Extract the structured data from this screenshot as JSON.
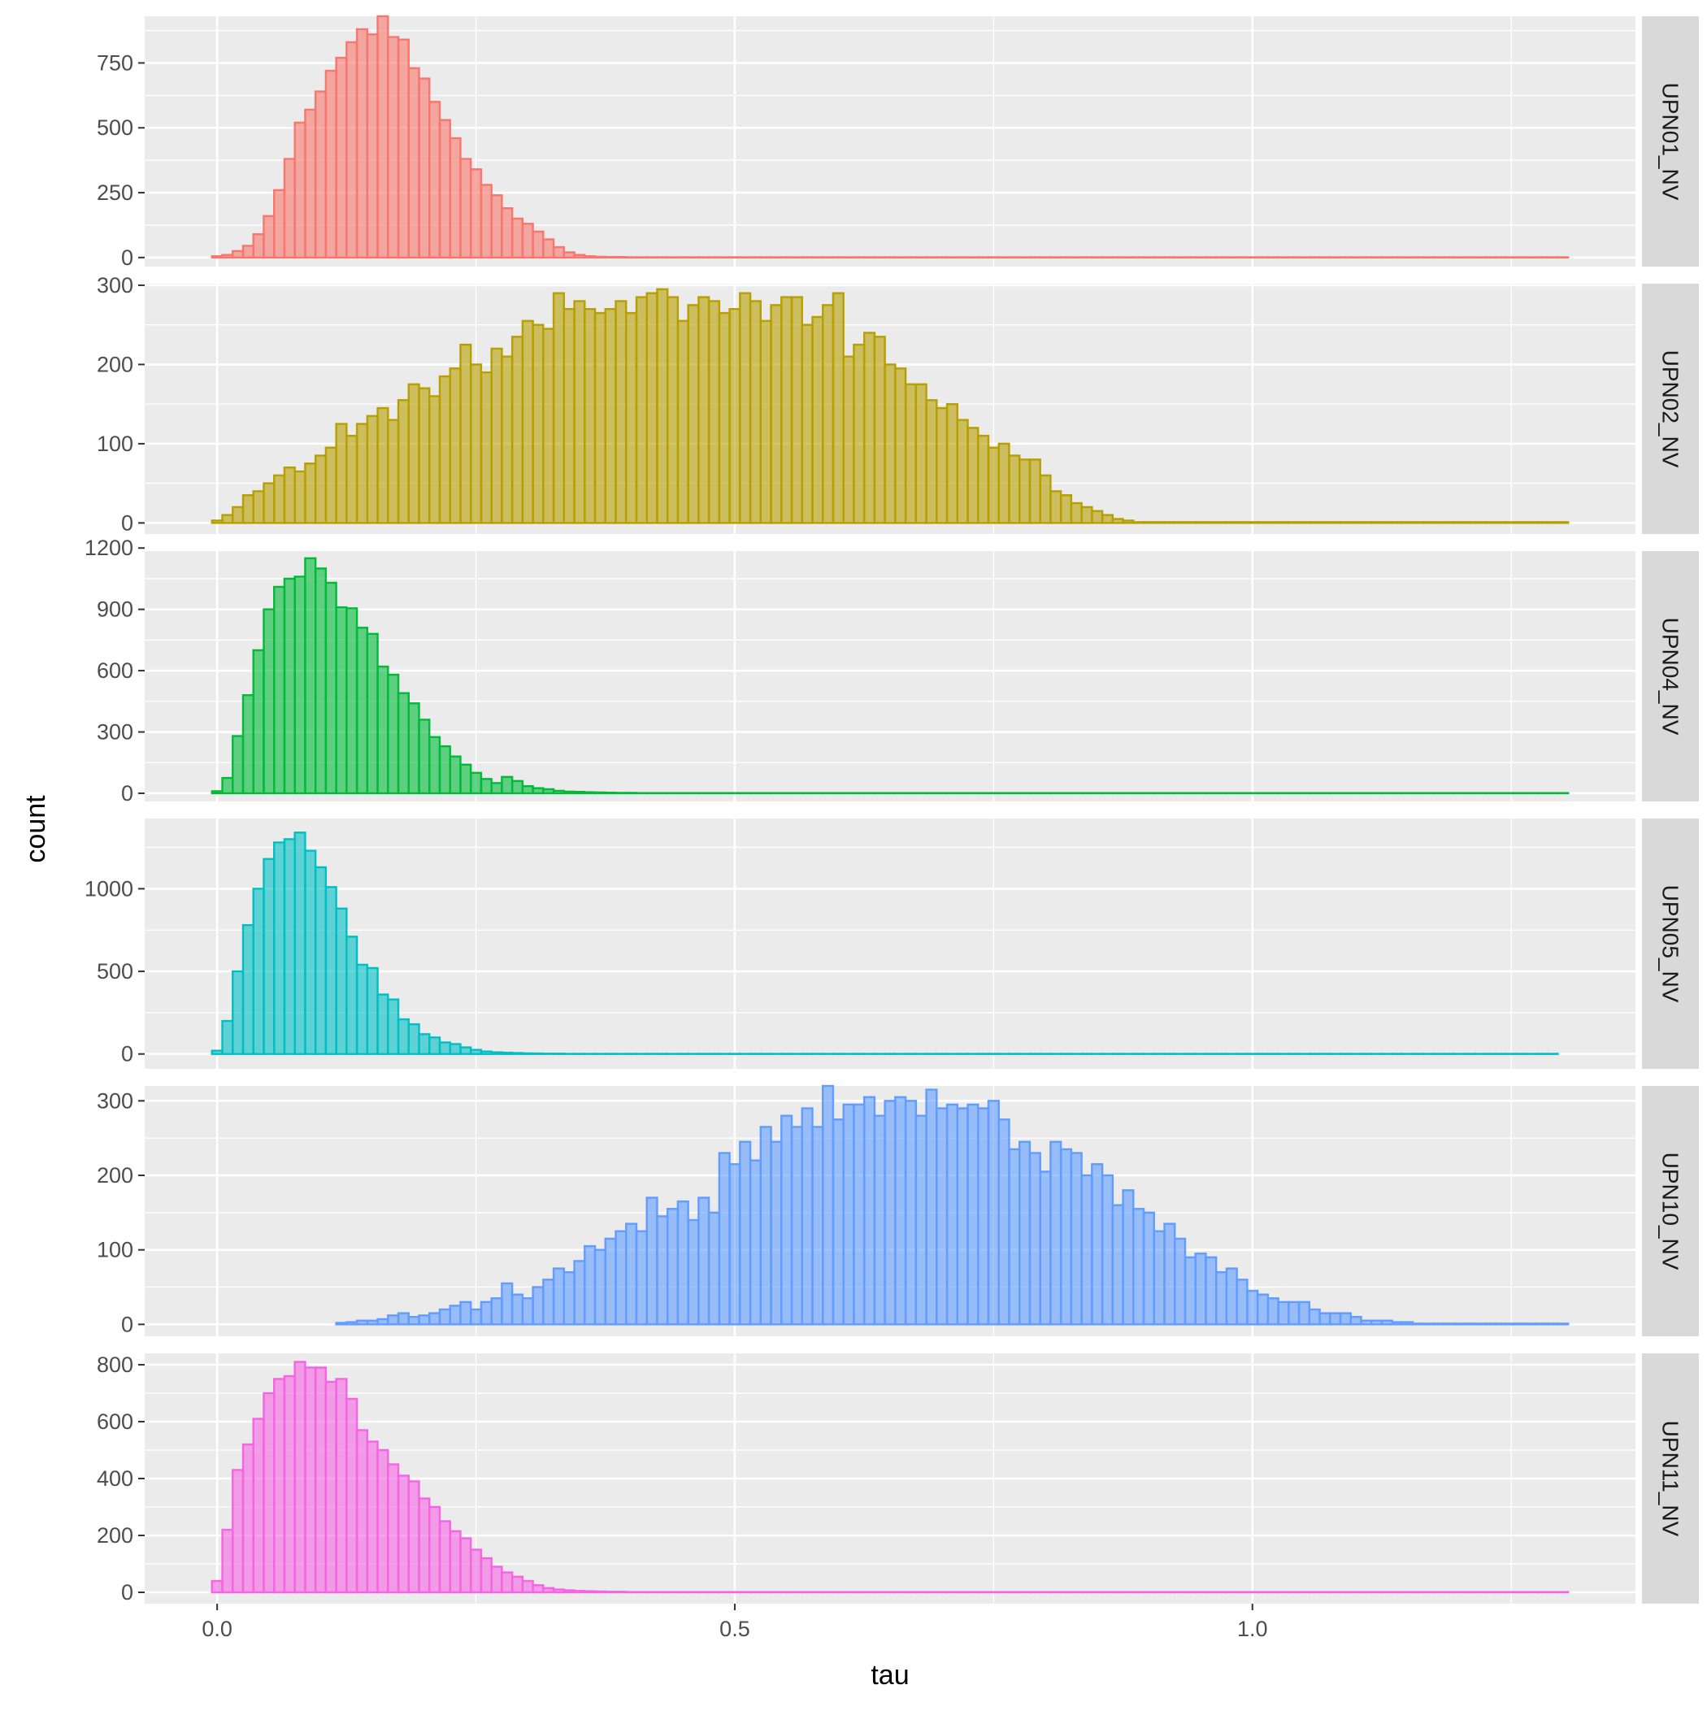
{
  "chart_data": {
    "type": "bar",
    "subtype": "faceted-histogram",
    "xlabel": "tau",
    "ylabel": "count",
    "xlim": [
      -0.07,
      1.37
    ],
    "x_ticks": [
      0.0,
      0.5,
      1.0
    ],
    "x_tick_labels": [
      "0.0",
      "0.5",
      "1.0"
    ],
    "bin_start": -0.005,
    "bin_width": 0.01,
    "grid": true,
    "legend": "none",
    "panel_background": "#ebebeb",
    "strip_background": "#d9d9d9",
    "facets": [
      {
        "label": "UPN01_NV",
        "color": "#F8766D",
        "ylim": [
          -35,
          930
        ],
        "y_ticks": [
          0,
          250,
          500,
          750
        ],
        "y_tick_labels": [
          "0",
          "250",
          "500",
          "750"
        ],
        "values": [
          5,
          10,
          25,
          45,
          90,
          160,
          260,
          380,
          520,
          570,
          640,
          720,
          770,
          830,
          880,
          860,
          930,
          850,
          840,
          730,
          690,
          600,
          530,
          460,
          380,
          340,
          280,
          240,
          190,
          150,
          130,
          100,
          70,
          40,
          20,
          10,
          5,
          3,
          2,
          2,
          1,
          1,
          1,
          1,
          1,
          1,
          1,
          1,
          1,
          1,
          1,
          1,
          1,
          1,
          1,
          1,
          1,
          1,
          1,
          1,
          1,
          1,
          1,
          1,
          1,
          1,
          1,
          1,
          1,
          1,
          1,
          1,
          1,
          1,
          1,
          1,
          1,
          1,
          1,
          1,
          1,
          1,
          1,
          1,
          1,
          1,
          1,
          1,
          1,
          1,
          1,
          1,
          1,
          1,
          1,
          1,
          1,
          1,
          1,
          1,
          1,
          1,
          1,
          1,
          1,
          1,
          1,
          1,
          1,
          1,
          1,
          1,
          1,
          1,
          1,
          1,
          1,
          1,
          1,
          1,
          1,
          1,
          1,
          1,
          1,
          1,
          1,
          1,
          1,
          1,
          1
        ]
      },
      {
        "label": "UPN02_NV",
        "color": "#B79F00",
        "ylim": [
          -14,
          302
        ],
        "y_ticks": [
          0,
          100,
          200,
          300
        ],
        "y_tick_labels": [
          "0",
          "100",
          "200",
          "300"
        ],
        "values": [
          3,
          10,
          20,
          35,
          40,
          50,
          60,
          70,
          65,
          75,
          85,
          95,
          125,
          110,
          125,
          135,
          145,
          130,
          155,
          175,
          170,
          160,
          185,
          195,
          225,
          200,
          190,
          220,
          210,
          235,
          255,
          250,
          245,
          290,
          270,
          280,
          270,
          265,
          270,
          280,
          265,
          285,
          290,
          295,
          285,
          255,
          275,
          285,
          280,
          265,
          270,
          290,
          280,
          255,
          275,
          285,
          285,
          250,
          260,
          275,
          290,
          210,
          225,
          240,
          235,
          200,
          195,
          175,
          175,
          155,
          145,
          150,
          130,
          120,
          110,
          95,
          100,
          85,
          80,
          80,
          60,
          40,
          35,
          25,
          20,
          15,
          10,
          5,
          3,
          1,
          1,
          1,
          1,
          1,
          1,
          1,
          1,
          1,
          1,
          1,
          1,
          1,
          1,
          1,
          1,
          1,
          1,
          1,
          1,
          1,
          1,
          1,
          1,
          1,
          1,
          1,
          1,
          1,
          1,
          1,
          1,
          1,
          1,
          1,
          1,
          1,
          1,
          1,
          1,
          1,
          1
        ]
      },
      {
        "label": "UPN04_NV",
        "color": "#00BA38",
        "ylim": [
          -40,
          1185
        ],
        "y_ticks": [
          0,
          300,
          600,
          900,
          1200
        ],
        "y_tick_labels": [
          "0",
          "300",
          "600",
          "900",
          "1200"
        ],
        "values": [
          10,
          75,
          280,
          480,
          700,
          900,
          1010,
          1050,
          1060,
          1150,
          1100,
          1030,
          910,
          905,
          810,
          780,
          620,
          580,
          490,
          440,
          360,
          275,
          230,
          180,
          140,
          100,
          70,
          50,
          80,
          60,
          35,
          25,
          20,
          12,
          8,
          7,
          5,
          4,
          3,
          2,
          2,
          1,
          1,
          1,
          1,
          1,
          1,
          1,
          1,
          1,
          1,
          1,
          1,
          1,
          1,
          1,
          1,
          1,
          1,
          1,
          1,
          1,
          1,
          1,
          1,
          1,
          1,
          1,
          1,
          1,
          1,
          1,
          1,
          1,
          1,
          1,
          1,
          1,
          1,
          1,
          1,
          1,
          1,
          1,
          1,
          1,
          1,
          1,
          1,
          1,
          1,
          1,
          1,
          1,
          1,
          1,
          1,
          1,
          1,
          1,
          1,
          1,
          1,
          1,
          1,
          1,
          1,
          1,
          1,
          1,
          1,
          1,
          1,
          1,
          1,
          1,
          1,
          1,
          1,
          1,
          1,
          1,
          1,
          1,
          1,
          1,
          1,
          1,
          1,
          1,
          1
        ]
      },
      {
        "label": "UPN05_NV",
        "color": "#00BFC4",
        "ylim": [
          -90,
          1425
        ],
        "y_ticks": [
          0,
          500,
          1000
        ],
        "y_tick_labels": [
          "0",
          "500",
          "1000"
        ],
        "values": [
          20,
          200,
          500,
          780,
          1000,
          1180,
          1280,
          1300,
          1340,
          1230,
          1130,
          1010,
          880,
          710,
          540,
          520,
          360,
          330,
          210,
          180,
          120,
          100,
          70,
          60,
          40,
          25,
          15,
          10,
          8,
          6,
          4,
          3,
          2,
          2,
          1,
          1,
          1,
          1,
          1,
          1,
          1,
          1,
          1,
          1,
          1,
          1,
          1,
          1,
          1,
          1,
          1,
          1,
          1,
          1,
          1,
          1,
          1,
          1,
          1,
          1,
          1,
          1,
          1,
          1,
          1,
          1,
          1,
          1,
          1,
          1,
          1,
          1,
          1,
          1,
          1,
          1,
          1,
          1,
          1,
          1,
          1,
          1,
          1,
          1,
          1,
          1,
          1,
          1,
          1,
          1,
          1,
          1,
          1,
          1,
          1,
          1,
          1,
          1,
          1,
          1,
          1,
          1,
          1,
          1,
          1,
          1,
          1,
          1,
          1,
          1,
          1,
          1,
          1,
          1,
          1,
          1,
          1,
          1,
          1,
          1,
          1,
          1,
          1,
          1,
          1,
          1,
          1,
          1,
          1,
          1
        ]
      },
      {
        "label": "UPN10_NV",
        "color": "#619CFF",
        "ylim": [
          -16,
          320
        ],
        "y_ticks": [
          0,
          100,
          200,
          300
        ],
        "y_tick_labels": [
          "0",
          "100",
          "200",
          "300"
        ],
        "values": [
          0,
          0,
          0,
          0,
          0,
          0,
          0,
          0,
          0,
          0,
          0,
          0,
          2,
          3,
          5,
          5,
          7,
          12,
          15,
          10,
          12,
          15,
          20,
          25,
          30,
          20,
          30,
          35,
          55,
          40,
          35,
          50,
          60,
          75,
          70,
          85,
          105,
          100,
          115,
          125,
          135,
          125,
          170,
          145,
          155,
          165,
          140,
          170,
          150,
          230,
          215,
          245,
          220,
          265,
          245,
          280,
          265,
          290,
          265,
          320,
          275,
          295,
          295,
          305,
          280,
          300,
          305,
          300,
          280,
          315,
          290,
          295,
          290,
          295,
          290,
          300,
          275,
          235,
          245,
          230,
          205,
          245,
          235,
          230,
          200,
          215,
          200,
          160,
          180,
          155,
          150,
          125,
          135,
          115,
          90,
          95,
          90,
          70,
          75,
          60,
          45,
          40,
          35,
          30,
          30,
          30,
          20,
          15,
          15,
          15,
          10,
          5,
          5,
          5,
          3,
          3,
          1,
          1,
          1,
          1,
          1,
          1,
          1,
          1,
          1,
          1,
          1,
          1,
          1,
          1,
          1
        ]
      },
      {
        "label": "UPN11_NV",
        "color": "#F564E3",
        "ylim": [
          -40,
          840
        ],
        "y_ticks": [
          0,
          200,
          400,
          600,
          800
        ],
        "y_tick_labels": [
          "0",
          "200",
          "400",
          "600",
          "800"
        ],
        "values": [
          40,
          220,
          430,
          520,
          610,
          700,
          750,
          760,
          810,
          790,
          790,
          740,
          750,
          680,
          570,
          530,
          500,
          450,
          410,
          390,
          330,
          300,
          250,
          215,
          190,
          150,
          120,
          90,
          70,
          55,
          40,
          25,
          15,
          10,
          7,
          5,
          4,
          3,
          2,
          2,
          1,
          1,
          1,
          1,
          1,
          1,
          1,
          1,
          1,
          1,
          1,
          1,
          1,
          1,
          1,
          1,
          1,
          1,
          1,
          1,
          1,
          1,
          1,
          1,
          1,
          1,
          1,
          1,
          1,
          1,
          1,
          1,
          1,
          1,
          1,
          1,
          1,
          1,
          1,
          1,
          1,
          1,
          1,
          1,
          1,
          1,
          1,
          1,
          1,
          1,
          1,
          1,
          1,
          1,
          1,
          1,
          1,
          1,
          1,
          1,
          1,
          1,
          1,
          1,
          1,
          1,
          1,
          1,
          1,
          1,
          1,
          1,
          1,
          1,
          1,
          1,
          1,
          1,
          1,
          1,
          1,
          1,
          1,
          1,
          1,
          1,
          1,
          1,
          1,
          1,
          1
        ]
      }
    ]
  }
}
